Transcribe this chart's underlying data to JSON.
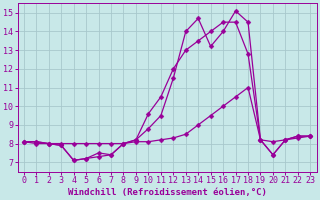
{
  "background_color": "#c8e8e8",
  "grid_color": "#a8c8cc",
  "line_color": "#990099",
  "marker": "D",
  "markersize": 2.5,
  "linewidth": 0.9,
  "xlabel": "Windchill (Refroidissement éolien,°C)",
  "xlabel_fontsize": 6.5,
  "tick_fontsize": 6.0,
  "xlim": [
    -0.5,
    23.5
  ],
  "ylim": [
    6.5,
    15.5
  ],
  "yticks": [
    7,
    8,
    9,
    10,
    11,
    12,
    13,
    14,
    15
  ],
  "xticks": [
    0,
    1,
    2,
    3,
    4,
    5,
    6,
    7,
    8,
    9,
    10,
    11,
    12,
    13,
    14,
    15,
    16,
    17,
    18,
    19,
    20,
    21,
    22,
    23
  ],
  "series1_x": [
    0,
    1,
    2,
    3,
    4,
    5,
    6,
    7,
    8,
    9,
    10,
    11,
    12,
    13,
    14,
    15,
    16,
    17,
    18,
    19,
    20,
    21,
    22,
    23
  ],
  "series1_y": [
    8.1,
    8.1,
    8.0,
    7.9,
    7.1,
    7.2,
    7.3,
    7.4,
    8.0,
    8.2,
    8.8,
    9.5,
    11.5,
    14.0,
    14.7,
    13.2,
    14.0,
    15.1,
    14.5,
    8.2,
    7.4,
    8.2,
    8.4,
    8.4
  ],
  "series2_x": [
    0,
    1,
    2,
    3,
    4,
    5,
    6,
    7,
    8,
    9,
    10,
    11,
    12,
    13,
    14,
    15,
    16,
    17,
    18,
    19,
    20,
    21,
    22,
    23
  ],
  "series2_y": [
    8.1,
    8.1,
    8.0,
    7.9,
    7.1,
    7.2,
    7.5,
    7.4,
    8.0,
    8.2,
    9.6,
    10.5,
    12.0,
    13.0,
    13.5,
    14.0,
    14.5,
    14.5,
    12.8,
    8.2,
    7.4,
    8.2,
    8.4,
    8.4
  ],
  "series3_x": [
    0,
    1,
    2,
    3,
    4,
    5,
    6,
    7,
    8,
    9,
    10,
    11,
    12,
    13,
    14,
    15,
    16,
    17,
    18,
    19,
    20,
    21,
    22,
    23
  ],
  "series3_y": [
    8.1,
    8.0,
    8.0,
    8.0,
    8.0,
    8.0,
    8.0,
    8.0,
    8.0,
    8.1,
    8.1,
    8.2,
    8.3,
    8.5,
    9.0,
    9.5,
    10.0,
    10.5,
    11.0,
    8.2,
    8.1,
    8.2,
    8.3,
    8.4
  ]
}
